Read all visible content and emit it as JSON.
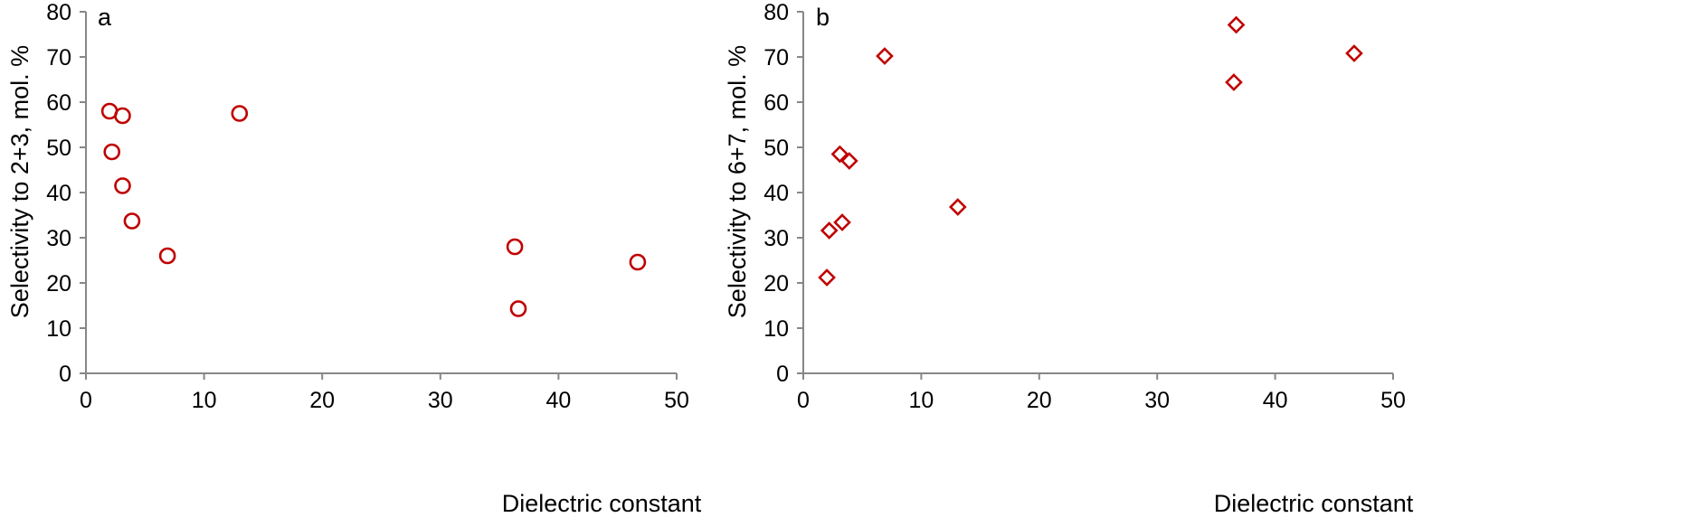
{
  "colors": {
    "marker": "#C00000",
    "axis": "#878787",
    "text": "#000000"
  },
  "chart_data": [
    {
      "type": "scatter",
      "panel_label": "a",
      "title": "",
      "xlabel": "Dielectric constant",
      "ylabel": "Selectivity to 2+3, mol. %",
      "xlim": [
        0,
        50
      ],
      "ylim": [
        0,
        80
      ],
      "xticks": [
        0,
        10,
        20,
        30,
        40,
        50
      ],
      "yticks": [
        0,
        10,
        20,
        30,
        40,
        50,
        60,
        70,
        80
      ],
      "marker": "circle",
      "grid": false,
      "legend": "none",
      "points": [
        {
          "x": 2.0,
          "y": 58.0
        },
        {
          "x": 2.2,
          "y": 49.0
        },
        {
          "x": 3.1,
          "y": 57.0
        },
        {
          "x": 3.1,
          "y": 41.5
        },
        {
          "x": 3.9,
          "y": 33.7
        },
        {
          "x": 6.9,
          "y": 26.0
        },
        {
          "x": 13.0,
          "y": 57.5
        },
        {
          "x": 36.3,
          "y": 28.0
        },
        {
          "x": 36.6,
          "y": 14.3
        },
        {
          "x": 46.7,
          "y": 24.6
        }
      ]
    },
    {
      "type": "scatter",
      "panel_label": "b",
      "title": "",
      "xlabel": "Dielectric constant",
      "ylabel": "Selectivity to 6+7, mol. %",
      "xlim": [
        0,
        50
      ],
      "ylim": [
        0,
        80
      ],
      "xticks": [
        0,
        10,
        20,
        30,
        40,
        50
      ],
      "yticks": [
        0,
        10,
        20,
        30,
        40,
        50,
        60,
        70,
        80
      ],
      "marker": "diamond",
      "grid": false,
      "legend": "none",
      "points": [
        {
          "x": 2.0,
          "y": 21.2
        },
        {
          "x": 2.2,
          "y": 31.6
        },
        {
          "x": 3.1,
          "y": 48.5
        },
        {
          "x": 3.3,
          "y": 33.4
        },
        {
          "x": 3.9,
          "y": 47.0
        },
        {
          "x": 6.9,
          "y": 70.2
        },
        {
          "x": 13.1,
          "y": 36.8
        },
        {
          "x": 36.5,
          "y": 64.4
        },
        {
          "x": 36.7,
          "y": 77.1
        },
        {
          "x": 46.7,
          "y": 70.8
        }
      ]
    }
  ]
}
